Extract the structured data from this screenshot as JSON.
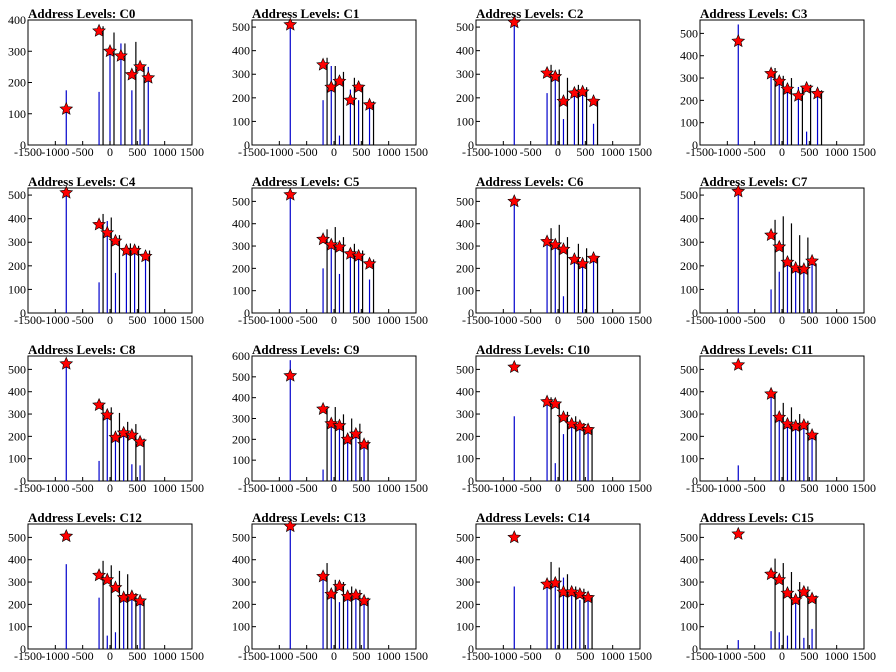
{
  "chart_data": [
    {
      "type": "bar",
      "title": "Address Levels: C0",
      "xlim": [
        -1500,
        1500
      ],
      "ylim": [
        0,
        400
      ],
      "xticks": [
        -1500,
        -1000,
        -500,
        0,
        500,
        1000,
        1500
      ],
      "yticks": [
        0,
        100,
        200,
        300,
        400
      ],
      "peaks": {
        "x": [
          -800,
          -200,
          0,
          200,
          400,
          550,
          700
        ],
        "y": [
          115,
          365,
          300,
          285,
          225,
          250,
          215
        ]
      },
      "blue_spikes": {
        "x": [
          -800,
          -200,
          0,
          200,
          400,
          550,
          700
        ],
        "y": [
          175,
          170,
          300,
          325,
          175,
          50,
          250
        ]
      },
      "black_spikes": {
        "x": [
          -200,
          0,
          200,
          400,
          550
        ],
        "y": [
          380,
          360,
          325,
          330,
          255
        ]
      }
    },
    {
      "type": "bar",
      "title": "Address Levels: C1",
      "xlim": [
        -1500,
        1500
      ],
      "ylim": [
        0,
        530
      ],
      "xticks": [
        -1500,
        -1000,
        -500,
        0,
        500,
        1000,
        1500
      ],
      "yticks": [
        0,
        100,
        200,
        300,
        400,
        500
      ],
      "peaks": {
        "x": [
          -800,
          -200,
          -50,
          100,
          300,
          450,
          650
        ],
        "y": [
          510,
          340,
          245,
          270,
          190,
          245,
          170
        ]
      },
      "blue_spikes": {
        "x": [
          -800,
          -200,
          -50,
          100,
          300,
          450,
          650
        ],
        "y": [
          520,
          190,
          335,
          40,
          235,
          190,
          175
        ]
      },
      "black_spikes": {
        "x": [
          -200,
          -50,
          100,
          300,
          450,
          650
        ],
        "y": [
          370,
          335,
          310,
          285,
          255,
          185
        ]
      }
    },
    {
      "type": "bar",
      "title": "Address Levels: C2",
      "xlim": [
        -1500,
        1500
      ],
      "ylim": [
        0,
        530
      ],
      "xticks": [
        -1500,
        -1000,
        -500,
        0,
        500,
        1000,
        1500
      ],
      "yticks": [
        0,
        100,
        200,
        300,
        400,
        500
      ],
      "peaks": {
        "x": [
          -800,
          -200,
          -50,
          100,
          300,
          450,
          650
        ],
        "y": [
          520,
          305,
          290,
          185,
          220,
          225,
          185
        ]
      },
      "blue_spikes": {
        "x": [
          -800,
          -200,
          -50,
          100,
          300,
          450,
          650
        ],
        "y": [
          530,
          220,
          310,
          110,
          230,
          225,
          90
        ]
      },
      "black_spikes": {
        "x": [
          -200,
          -50,
          100,
          300,
          450,
          650
        ],
        "y": [
          340,
          320,
          285,
          255,
          245,
          190
        ]
      }
    },
    {
      "type": "bar",
      "title": "Address Levels: C3",
      "xlim": [
        -1500,
        1500
      ],
      "ylim": [
        0,
        560
      ],
      "xticks": [
        -1500,
        -1000,
        -500,
        0,
        500,
        1000,
        1500
      ],
      "yticks": [
        0,
        100,
        200,
        300,
        400,
        500
      ],
      "peaks": {
        "x": [
          -800,
          -200,
          -50,
          100,
          300,
          450,
          650
        ],
        "y": [
          465,
          320,
          285,
          250,
          220,
          255,
          230
        ]
      },
      "blue_spikes": {
        "x": [
          -800,
          -200,
          -50,
          100,
          300,
          450,
          650
        ],
        "y": [
          540,
          335,
          300,
          250,
          260,
          60,
          245
        ]
      },
      "black_spikes": {
        "x": [
          -200,
          -50,
          100,
          300,
          450,
          650
        ],
        "y": [
          345,
          310,
          300,
          265,
          270,
          245
        ]
      }
    },
    {
      "type": "bar",
      "title": "Address Levels: C4",
      "xlim": [
        -1500,
        1500
      ],
      "ylim": [
        0,
        530
      ],
      "xticks": [
        -1500,
        -1000,
        -500,
        0,
        500,
        1000,
        1500
      ],
      "yticks": [
        0,
        100,
        200,
        300,
        400,
        500
      ],
      "peaks": {
        "x": [
          -800,
          -200,
          -50,
          100,
          300,
          450,
          650
        ],
        "y": [
          510,
          375,
          340,
          305,
          265,
          265,
          240
        ]
      },
      "blue_spikes": {
        "x": [
          -800,
          -200,
          -50,
          100,
          300,
          450,
          650
        ],
        "y": [
          530,
          130,
          390,
          170,
          265,
          250,
          250
        ]
      },
      "black_spikes": {
        "x": [
          -200,
          -50,
          100,
          300,
          450,
          650
        ],
        "y": [
          420,
          405,
          330,
          295,
          285,
          265
        ]
      }
    },
    {
      "type": "bar",
      "title": "Address Levels: C5",
      "xlim": [
        -1500,
        1500
      ],
      "ylim": [
        0,
        560
      ],
      "xticks": [
        -1500,
        -1000,
        -500,
        0,
        500,
        1000,
        1500
      ],
      "yticks": [
        0,
        100,
        200,
        300,
        400,
        500
      ],
      "peaks": {
        "x": [
          -800,
          -200,
          -50,
          100,
          300,
          450,
          650
        ],
        "y": [
          530,
          330,
          305,
          295,
          265,
          255,
          220
        ]
      },
      "blue_spikes": {
        "x": [
          -800,
          -200,
          -50,
          100,
          300,
          450,
          650
        ],
        "y": [
          545,
          200,
          320,
          175,
          265,
          250,
          150
        ]
      },
      "black_spikes": {
        "x": [
          -200,
          -50,
          100,
          300,
          450,
          650
        ],
        "y": [
          375,
          385,
          340,
          310,
          280,
          240
        ]
      }
    },
    {
      "type": "bar",
      "title": "Address Levels: C6",
      "xlim": [
        -1500,
        1500
      ],
      "ylim": [
        0,
        560
      ],
      "xticks": [
        -1500,
        -1000,
        -500,
        0,
        500,
        1000,
        1500
      ],
      "yticks": [
        0,
        100,
        200,
        300,
        400,
        500
      ],
      "peaks": {
        "x": [
          -800,
          -200,
          -50,
          100,
          300,
          450,
          650
        ],
        "y": [
          500,
          320,
          305,
          285,
          240,
          220,
          245
        ]
      },
      "blue_spikes": {
        "x": [
          -800,
          -200,
          -50,
          100,
          300,
          450,
          650
        ],
        "y": [
          520,
          320,
          305,
          75,
          240,
          220,
          250
        ]
      },
      "black_spikes": {
        "x": [
          -200,
          -50,
          100,
          300,
          450,
          650
        ],
        "y": [
          380,
          395,
          340,
          310,
          290,
          255
        ]
      }
    },
    {
      "type": "bar",
      "title": "Address Levels: C7",
      "xlim": [
        -1500,
        1500
      ],
      "ylim": [
        0,
        530
      ],
      "xticks": [
        -1500,
        -1000,
        -500,
        0,
        500,
        1000,
        1500
      ],
      "yticks": [
        0,
        100,
        200,
        300,
        400,
        500
      ],
      "peaks": {
        "x": [
          -800,
          -200,
          -50,
          100,
          250,
          400,
          550
        ],
        "y": [
          515,
          330,
          280,
          215,
          190,
          185,
          220
        ]
      },
      "blue_spikes": {
        "x": [
          -800,
          -200,
          -50,
          100,
          250,
          400,
          550
        ],
        "y": [
          520,
          100,
          175,
          210,
          195,
          185,
          225
        ]
      },
      "black_spikes": {
        "x": [
          -200,
          -50,
          100,
          250,
          400,
          550
        ],
        "y": [
          395,
          410,
          380,
          330,
          320,
          210
        ]
      }
    },
    {
      "type": "bar",
      "title": "Address Levels: C8",
      "xlim": [
        -1500,
        1500
      ],
      "ylim": [
        0,
        560
      ],
      "xticks": [
        -1500,
        -1000,
        -500,
        0,
        500,
        1000,
        1500
      ],
      "yticks": [
        0,
        100,
        200,
        300,
        400,
        500
      ],
      "peaks": {
        "x": [
          -800,
          -200,
          -50,
          100,
          250,
          400,
          550
        ],
        "y": [
          525,
          340,
          295,
          195,
          215,
          205,
          175
        ]
      },
      "blue_spikes": {
        "x": [
          -800,
          -200,
          -50,
          100,
          250,
          400,
          550
        ],
        "y": [
          530,
          90,
          300,
          195,
          215,
          75,
          70
        ]
      },
      "black_spikes": {
        "x": [
          -200,
          -50,
          100,
          250,
          400,
          550
        ],
        "y": [
          350,
          330,
          305,
          265,
          255,
          190
        ]
      }
    },
    {
      "type": "bar",
      "title": "Address Levels: C9",
      "xlim": [
        -1500,
        1500
      ],
      "ylim": [
        0,
        600
      ],
      "xticks": [
        -1500,
        -1000,
        -500,
        0,
        500,
        1000,
        1500
      ],
      "yticks": [
        0,
        100,
        200,
        300,
        400,
        500,
        600
      ],
      "peaks": {
        "x": [
          -800,
          -200,
          -50,
          100,
          250,
          400,
          550
        ],
        "y": [
          505,
          345,
          275,
          265,
          200,
          225,
          175
        ]
      },
      "blue_spikes": {
        "x": [
          -800,
          -200,
          -50,
          100,
          250,
          400,
          550
        ],
        "y": [
          580,
          55,
          270,
          270,
          210,
          230,
          180
        ]
      },
      "black_spikes": {
        "x": [
          -200,
          -50,
          100,
          250,
          400,
          550
        ],
        "y": [
          360,
          355,
          320,
          300,
          275,
          195
        ]
      }
    },
    {
      "type": "bar",
      "title": "Address Levels: C10",
      "xlim": [
        -1500,
        1500
      ],
      "ylim": [
        0,
        560
      ],
      "xticks": [
        -1500,
        -1000,
        -500,
        0,
        500,
        1000,
        1500
      ],
      "yticks": [
        0,
        100,
        200,
        300,
        400,
        500
      ],
      "peaks": {
        "x": [
          -800,
          -200,
          -50,
          100,
          250,
          400,
          550
        ],
        "y": [
          510,
          355,
          345,
          285,
          255,
          245,
          230
        ]
      },
      "blue_spikes": {
        "x": [
          -800,
          -200,
          -50,
          100,
          250,
          400,
          550
        ],
        "y": [
          290,
          355,
          80,
          210,
          255,
          245,
          225
        ]
      },
      "black_spikes": {
        "x": [
          -200,
          -50,
          100,
          250,
          400,
          550
        ],
        "y": [
          375,
          350,
          310,
          290,
          260,
          240
        ]
      }
    },
    {
      "type": "bar",
      "title": "Address Levels: C11",
      "xlim": [
        -1500,
        1500
      ],
      "ylim": [
        0,
        560
      ],
      "xticks": [
        -1500,
        -1000,
        -500,
        0,
        500,
        1000,
        1500
      ],
      "yticks": [
        0,
        100,
        200,
        300,
        400,
        500
      ],
      "peaks": {
        "x": [
          -800,
          -200,
          -50,
          100,
          250,
          400,
          550
        ],
        "y": [
          520,
          390,
          285,
          255,
          245,
          250,
          205
        ]
      },
      "blue_spikes": {
        "x": [
          -800,
          -200,
          -50,
          100,
          250,
          400,
          550
        ],
        "y": [
          70,
          385,
          280,
          250,
          240,
          240,
          200
        ]
      },
      "black_spikes": {
        "x": [
          -200,
          -50,
          100,
          250,
          400,
          550
        ],
        "y": [
          400,
          350,
          330,
          300,
          270,
          215
        ]
      }
    },
    {
      "type": "bar",
      "title": "Address Levels: C12",
      "xlim": [
        -1500,
        1500
      ],
      "ylim": [
        0,
        560
      ],
      "xticks": [
        -1500,
        -1000,
        -500,
        0,
        500,
        1000,
        1500
      ],
      "yticks": [
        0,
        100,
        200,
        300,
        400,
        500
      ],
      "peaks": {
        "x": [
          -800,
          -200,
          -50,
          100,
          250,
          400,
          550
        ],
        "y": [
          505,
          330,
          310,
          275,
          230,
          235,
          215
        ]
      },
      "blue_spikes": {
        "x": [
          -800,
          -200,
          -50,
          100,
          250,
          400,
          550
        ],
        "y": [
          380,
          230,
          60,
          75,
          225,
          240,
          210
        ]
      },
      "black_spikes": {
        "x": [
          -200,
          -50,
          100,
          250,
          400,
          550
        ],
        "y": [
          395,
          375,
          350,
          335,
          250,
          225
        ]
      }
    },
    {
      "type": "bar",
      "title": "Address Levels: C13",
      "xlim": [
        -1500,
        1500
      ],
      "ylim": [
        0,
        560
      ],
      "xticks": [
        -1500,
        -1000,
        -500,
        0,
        500,
        1000,
        1500
      ],
      "yticks": [
        0,
        100,
        200,
        300,
        400,
        500
      ],
      "peaks": {
        "x": [
          -800,
          -200,
          -50,
          100,
          250,
          400,
          550
        ],
        "y": [
          550,
          325,
          245,
          280,
          235,
          240,
          215
        ]
      },
      "blue_spikes": {
        "x": [
          -800,
          -200,
          -50,
          100,
          250,
          400,
          550
        ],
        "y": [
          545,
          325,
          245,
          210,
          235,
          240,
          215
        ]
      },
      "black_spikes": {
        "x": [
          -200,
          -50,
          100,
          250,
          400,
          550
        ],
        "y": [
          385,
          310,
          300,
          280,
          265,
          230
        ]
      }
    },
    {
      "type": "bar",
      "title": "Address Levels: C14",
      "xlim": [
        -1500,
        1500
      ],
      "ylim": [
        0,
        560
      ],
      "xticks": [
        -1500,
        -1000,
        -500,
        0,
        500,
        1000,
        1500
      ],
      "yticks": [
        0,
        100,
        200,
        300,
        400,
        500
      ],
      "peaks": {
        "x": [
          -800,
          -200,
          -50,
          100,
          250,
          400,
          550
        ],
        "y": [
          500,
          290,
          295,
          255,
          255,
          245,
          230
        ]
      },
      "blue_spikes": {
        "x": [
          -800,
          -200,
          -50,
          100,
          250,
          400,
          550
        ],
        "y": [
          280,
          285,
          300,
          320,
          240,
          220,
          225
        ]
      },
      "black_spikes": {
        "x": [
          -200,
          -50,
          100,
          250,
          400,
          550
        ],
        "y": [
          390,
          365,
          335,
          280,
          270,
          240
        ]
      }
    },
    {
      "type": "bar",
      "title": "Address Levels: C15",
      "xlim": [
        -1500,
        1500
      ],
      "ylim": [
        0,
        560
      ],
      "xticks": [
        -1500,
        -1000,
        -500,
        0,
        500,
        1000,
        1500
      ],
      "yticks": [
        0,
        100,
        200,
        300,
        400,
        500
      ],
      "peaks": {
        "x": [
          -800,
          -200,
          -50,
          100,
          250,
          400,
          550
        ],
        "y": [
          515,
          335,
          310,
          250,
          220,
          255,
          225
        ]
      },
      "blue_spikes": {
        "x": [
          -800,
          -200,
          -50,
          100,
          250,
          400,
          550
        ],
        "y": [
          40,
          80,
          75,
          60,
          210,
          50,
          90
        ]
      },
      "black_spikes": {
        "x": [
          -200,
          -50,
          100,
          250,
          400,
          550
        ],
        "y": [
          405,
          385,
          345,
          300,
          280,
          240
        ]
      }
    }
  ],
  "colors": {
    "marker_fill": "#ff0000",
    "marker_stroke": "#000000",
    "blue_spike": "#0000cc",
    "black_spike": "#000000",
    "axis": "#000000"
  }
}
